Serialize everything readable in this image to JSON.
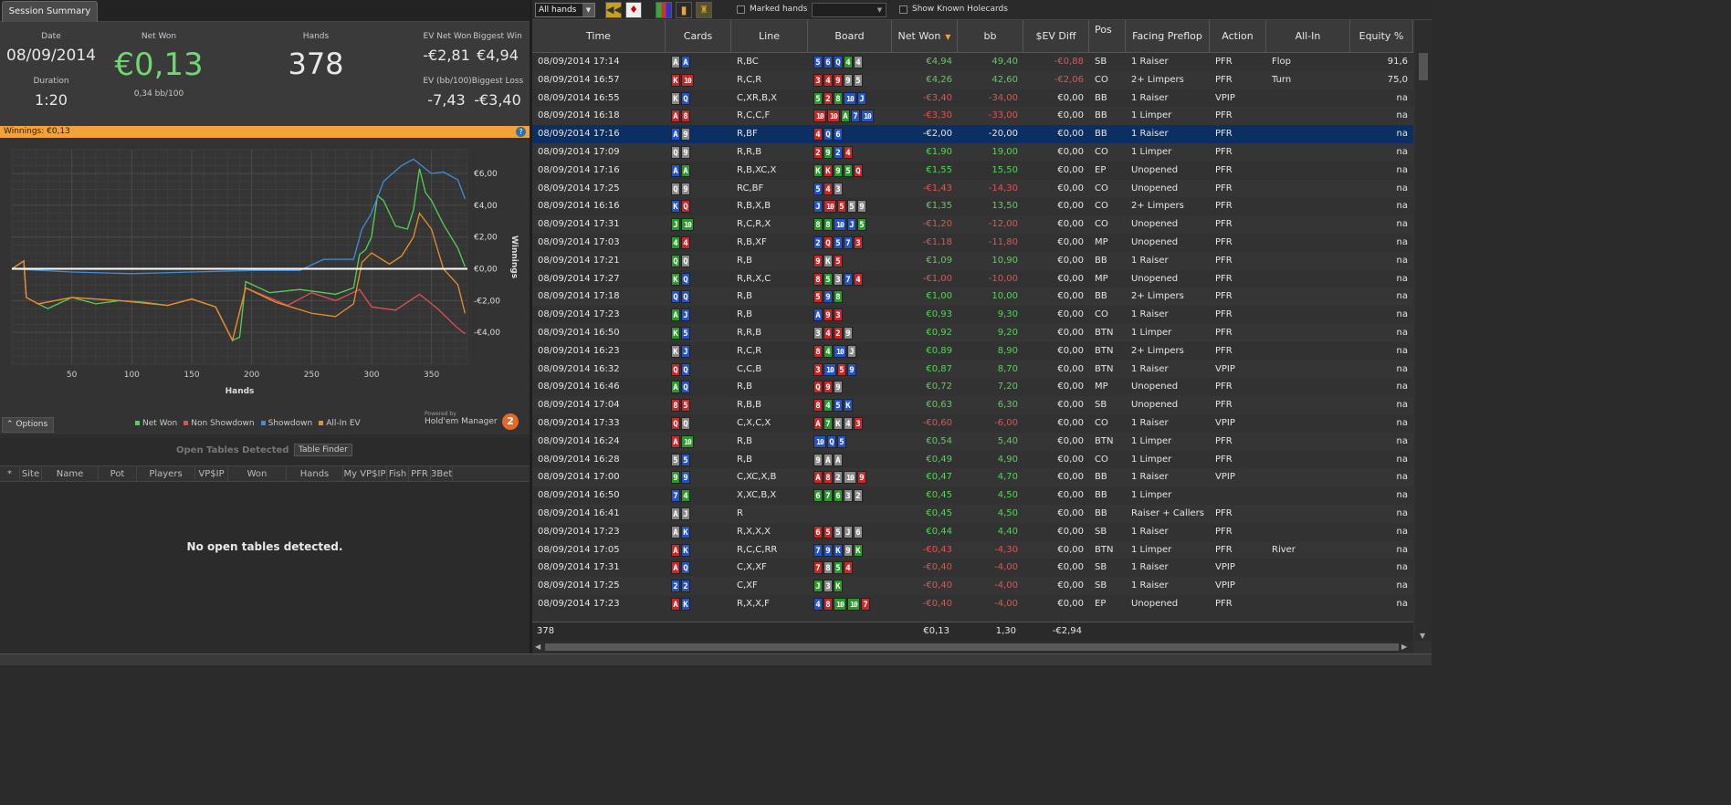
{
  "left": {
    "tab_label": "Session Summary",
    "summary": {
      "date_label": "Date",
      "date_value": "08/09/2014",
      "duration_label": "Duration",
      "duration_value": "1:20",
      "net_won_label": "Net Won",
      "net_won_value": "€0,13",
      "net_won_sub": "0,34 bb/100",
      "hands_label": "Hands",
      "hands_value": "378",
      "ev_net_won_label": "EV Net Won",
      "ev_net_won_value": "-€2,81",
      "biggest_win_label": "Biggest Win",
      "biggest_win_value": "€4,94",
      "ev_bb100_label": "EV (bb/100)",
      "ev_bb100_value": "-7,43",
      "biggest_loss_label": "Biggest Loss",
      "biggest_loss_value": "-€3,40"
    },
    "winbar_label": "Winnings:  €0,13",
    "help_glyph": "?",
    "options_label": "⌃  Options",
    "powered_by": "Powered by",
    "logo_text": "Hold'em Manager",
    "logo_badge": "2",
    "open_tables": {
      "title": "Open Tables Detected",
      "finder_label": "Table Finder",
      "columns": [
        "*",
        "Site",
        "Name",
        "Pot",
        "Players",
        "VP$IP",
        "Won",
        "Hands",
        "My VP$IP",
        "Fish",
        "PFR",
        "3Bet"
      ],
      "empty_message": "No open tables detected."
    }
  },
  "chart_data": {
    "type": "line",
    "xlabel": "Hands",
    "ylabel": "Winnings",
    "xlim": [
      0,
      380
    ],
    "ylim": [
      -6,
      7.5
    ],
    "x_ticks": [
      50,
      100,
      150,
      200,
      250,
      300,
      350
    ],
    "y_ticks": [
      6,
      4,
      2,
      0,
      -2,
      -4
    ],
    "y_tick_labels": [
      "€6,00",
      "€4,00",
      "€2,00",
      "€0,00",
      "-€2,00",
      "-€4,00"
    ],
    "grid": true,
    "legend_placement": "bottom",
    "series": [
      {
        "name": "Net Won",
        "color": "#52d152",
        "points": [
          [
            0,
            0
          ],
          [
            10,
            0.5
          ],
          [
            12,
            -1.8
          ],
          [
            22,
            -2.2
          ],
          [
            30,
            -2.5
          ],
          [
            50,
            -1.8
          ],
          [
            70,
            -2.2
          ],
          [
            90,
            -2.0
          ],
          [
            110,
            -2.1
          ],
          [
            130,
            -2.3
          ],
          [
            150,
            -1.9
          ],
          [
            170,
            -2.4
          ],
          [
            184,
            -4.5
          ],
          [
            190,
            -4.3
          ],
          [
            195,
            -0.8
          ],
          [
            215,
            -1.5
          ],
          [
            240,
            -1.3
          ],
          [
            270,
            -1.6
          ],
          [
            285,
            -1.2
          ],
          [
            290,
            0.9
          ],
          [
            295,
            1.2
          ],
          [
            300,
            2.0
          ],
          [
            305,
            4.6
          ],
          [
            310,
            4.3
          ],
          [
            320,
            2.7
          ],
          [
            330,
            2.5
          ],
          [
            335,
            3.7
          ],
          [
            340,
            6.3
          ],
          [
            345,
            4.8
          ],
          [
            350,
            4.3
          ],
          [
            360,
            2.8
          ],
          [
            372,
            1.3
          ],
          [
            378,
            0.13
          ]
        ]
      },
      {
        "name": "Non Showdown",
        "color": "#e05050",
        "points": [
          [
            0,
            0
          ],
          [
            10,
            0.5
          ],
          [
            12,
            -1.8
          ],
          [
            22,
            -2.2
          ],
          [
            50,
            -1.8
          ],
          [
            90,
            -2.0
          ],
          [
            130,
            -2.3
          ],
          [
            150,
            -1.9
          ],
          [
            170,
            -2.4
          ],
          [
            184,
            -4.5
          ],
          [
            195,
            -1.2
          ],
          [
            230,
            -2.3
          ],
          [
            250,
            -1.5
          ],
          [
            270,
            -2.0
          ],
          [
            290,
            -1.3
          ],
          [
            300,
            -2.4
          ],
          [
            320,
            -2.6
          ],
          [
            340,
            -1.6
          ],
          [
            355,
            -2.5
          ],
          [
            370,
            -3.6
          ],
          [
            378,
            -4.1
          ]
        ]
      },
      {
        "name": "Showdown",
        "color": "#3d8fd8",
        "points": [
          [
            0,
            0
          ],
          [
            50,
            -0.2
          ],
          [
            100,
            -0.3
          ],
          [
            150,
            -0.2
          ],
          [
            200,
            -0.1
          ],
          [
            240,
            -0.1
          ],
          [
            260,
            0.6
          ],
          [
            285,
            0.6
          ],
          [
            292,
            2.5
          ],
          [
            300,
            3.5
          ],
          [
            310,
            5.5
          ],
          [
            325,
            6.5
          ],
          [
            335,
            6.9
          ],
          [
            350,
            6.0
          ],
          [
            360,
            6.1
          ],
          [
            372,
            5.6
          ],
          [
            378,
            4.4
          ]
        ]
      },
      {
        "name": "All-In EV",
        "color": "#e8902a",
        "points": [
          [
            0,
            0
          ],
          [
            10,
            0.5
          ],
          [
            12,
            -1.8
          ],
          [
            22,
            -2.2
          ],
          [
            50,
            -1.8
          ],
          [
            90,
            -2.0
          ],
          [
            130,
            -2.3
          ],
          [
            150,
            -1.9
          ],
          [
            170,
            -2.4
          ],
          [
            184,
            -4.5
          ],
          [
            195,
            -1.2
          ],
          [
            220,
            -2.1
          ],
          [
            250,
            -2.8
          ],
          [
            270,
            -3.0
          ],
          [
            285,
            -2.2
          ],
          [
            292,
            0.4
          ],
          [
            300,
            1.0
          ],
          [
            315,
            0.3
          ],
          [
            325,
            0.8
          ],
          [
            335,
            2.0
          ],
          [
            340,
            3.5
          ],
          [
            350,
            2.5
          ],
          [
            360,
            0.0
          ],
          [
            372,
            -1.0
          ],
          [
            378,
            -2.81
          ]
        ]
      }
    ]
  },
  "toolbar": {
    "hands_filter": "All hands",
    "marked_hands_label": "Marked hands",
    "show_known_label": "Show Known Holecards"
  },
  "grid": {
    "columns": [
      "Time",
      "Cards",
      "Line",
      "Board",
      "Net Won",
      "bb",
      "$EV Diff",
      "Pos",
      "Facing Preflop",
      "Action",
      "All-In",
      "Equity %"
    ],
    "rows": [
      {
        "time": "08/09/2014 17:14",
        "cards": "As Ad",
        "line": "R,BC",
        "board": "5d 6d Qd 4c 4s",
        "net": "€4,94",
        "bb": "49,40",
        "ev": "-€0,88",
        "pos": "SB",
        "facing": "1 Raiser",
        "action": "PFR",
        "allin": "Flop",
        "eq": "91,6"
      },
      {
        "time": "08/09/2014 16:57",
        "cards": "Kh 10h",
        "line": "R,C,R",
        "board": "3h 4h 9h 9s 5s",
        "net": "€4,26",
        "bb": "42,60",
        "ev": "-€2,06",
        "pos": "CO",
        "facing": "2+ Limpers",
        "action": "PFR",
        "allin": "Turn",
        "eq": "75,0"
      },
      {
        "time": "08/09/2014 16:55",
        "cards": "Ks Qd",
        "line": "C,XR,B,X",
        "board": "5c 2h 8c 10d Jd",
        "net": "-€3,40",
        "bb": "-34,00",
        "ev": "€0,00",
        "pos": "BB",
        "facing": "1 Raiser",
        "action": "VPIP",
        "allin": "",
        "eq": "na"
      },
      {
        "time": "08/09/2014 16:18",
        "cards": "Ah 8h",
        "line": "R,C,C,F",
        "board": "10h 10h Ac 7d 10d",
        "net": "-€3,30",
        "bb": "-33,00",
        "ev": "€0,00",
        "pos": "BB",
        "facing": "1 Limper",
        "action": "PFR",
        "allin": "",
        "eq": "na"
      },
      {
        "time": "08/09/2014 17:16",
        "cards": "Ad 9s",
        "line": "R,BF",
        "board": "4h Qd 6d",
        "net": "-€2,00",
        "bb": "-20,00",
        "ev": "€0,00",
        "pos": "BB",
        "facing": "1 Raiser",
        "action": "PFR",
        "allin": "",
        "eq": "na",
        "selected": true
      },
      {
        "time": "08/09/2014 17:09",
        "cards": "Qs 9s",
        "line": "R,R,B",
        "board": "2h 9c 2d 4h",
        "net": "€1,90",
        "bb": "19,00",
        "ev": "€0,00",
        "pos": "CO",
        "facing": "1 Limper",
        "action": "PFR",
        "allin": "",
        "eq": "na"
      },
      {
        "time": "08/09/2014 17:16",
        "cards": "Ad Ac",
        "line": "R,B,XC,X",
        "board": "Kc Kh 9c 5c Qh",
        "net": "€1,55",
        "bb": "15,50",
        "ev": "€0,00",
        "pos": "EP",
        "facing": "Unopened",
        "action": "PFR",
        "allin": "",
        "eq": "na"
      },
      {
        "time": "08/09/2014 17:25",
        "cards": "Qs 9s",
        "line": "RC,BF",
        "board": "5d 4h 3s",
        "net": "-€1,43",
        "bb": "-14,30",
        "ev": "€0,00",
        "pos": "CO",
        "facing": "Unopened",
        "action": "PFR",
        "allin": "",
        "eq": "na"
      },
      {
        "time": "08/09/2014 16:16",
        "cards": "Kd Qh",
        "line": "R,B,X,B",
        "board": "Jd 10h 5h 5s 9s",
        "net": "€1,35",
        "bb": "13,50",
        "ev": "€0,00",
        "pos": "CO",
        "facing": "2+ Limpers",
        "action": "PFR",
        "allin": "",
        "eq": "na"
      },
      {
        "time": "08/09/2014 17:31",
        "cards": "Jc 10c",
        "line": "R,C,R,X",
        "board": "8c 8c 10d Jd 5c",
        "net": "-€1,20",
        "bb": "-12,00",
        "ev": "€0,00",
        "pos": "CO",
        "facing": "Unopened",
        "action": "PFR",
        "allin": "",
        "eq": "na"
      },
      {
        "time": "08/09/2014 17:03",
        "cards": "4c 4h",
        "line": "R,B,XF",
        "board": "2d Qh 5d 7d 3h",
        "net": "-€1,18",
        "bb": "-11,80",
        "ev": "€0,00",
        "pos": "MP",
        "facing": "Unopened",
        "action": "PFR",
        "allin": "",
        "eq": "na"
      },
      {
        "time": "08/09/2014 17:21",
        "cards": "Qc Qs",
        "line": "R,B",
        "board": "9h Ks 5h",
        "net": "€1,09",
        "bb": "10,90",
        "ev": "€0,00",
        "pos": "BB",
        "facing": "1 Raiser",
        "action": "PFR",
        "allin": "",
        "eq": "na"
      },
      {
        "time": "08/09/2014 17:27",
        "cards": "Kc Qd",
        "line": "R,R,X,C",
        "board": "8h 5c 3s 7d 4h",
        "net": "-€1,00",
        "bb": "-10,00",
        "ev": "€0,00",
        "pos": "MP",
        "facing": "Unopened",
        "action": "PFR",
        "allin": "",
        "eq": "na"
      },
      {
        "time": "08/09/2014 17:18",
        "cards": "Qd Qd",
        "line": "R,B",
        "board": "5h 9d 8c",
        "net": "€1,00",
        "bb": "10,00",
        "ev": "€0,00",
        "pos": "BB",
        "facing": "2+ Limpers",
        "action": "PFR",
        "allin": "",
        "eq": "na"
      },
      {
        "time": "08/09/2014 17:23",
        "cards": "Ac Jd",
        "line": "R,B",
        "board": "Ad 9h 3h",
        "net": "€0,93",
        "bb": "9,30",
        "ev": "€0,00",
        "pos": "CO",
        "facing": "1 Raiser",
        "action": "PFR",
        "allin": "",
        "eq": "na"
      },
      {
        "time": "08/09/2014 16:50",
        "cards": "Kc 5d",
        "line": "R,R,B",
        "board": "3s 4h 2h 9s",
        "net": "€0,92",
        "bb": "9,20",
        "ev": "€0,00",
        "pos": "BTN",
        "facing": "1 Limper",
        "action": "PFR",
        "allin": "",
        "eq": "na"
      },
      {
        "time": "08/09/2014 16:23",
        "cards": "Ks Jd",
        "line": "R,C,R",
        "board": "8h 4c 10d Js",
        "net": "€0,89",
        "bb": "8,90",
        "ev": "€0,00",
        "pos": "BTN",
        "facing": "2+ Limpers",
        "action": "PFR",
        "allin": "",
        "eq": "na"
      },
      {
        "time": "08/09/2014 16:32",
        "cards": "Qh Qd",
        "line": "C,C,B",
        "board": "3h 10d 5h 9d",
        "net": "€0,87",
        "bb": "8,70",
        "ev": "€0,00",
        "pos": "BTN",
        "facing": "1 Raiser",
        "action": "VPIP",
        "allin": "",
        "eq": "na"
      },
      {
        "time": "08/09/2014 16:46",
        "cards": "Ac Qd",
        "line": "R,B",
        "board": "Qh 9h 9s",
        "net": "€0,72",
        "bb": "7,20",
        "ev": "€0,00",
        "pos": "MP",
        "facing": "Unopened",
        "action": "PFR",
        "allin": "",
        "eq": "na"
      },
      {
        "time": "08/09/2014 17:04",
        "cards": "8h 5h",
        "line": "R,B,B",
        "board": "8h 4c 5d Kd",
        "net": "€0,63",
        "bb": "6,30",
        "ev": "€0,00",
        "pos": "SB",
        "facing": "Unopened",
        "action": "PFR",
        "allin": "",
        "eq": "na"
      },
      {
        "time": "08/09/2014 17:33",
        "cards": "Qh Qs",
        "line": "C,X,C,X",
        "board": "Ah 7c Ks 4s 3h",
        "net": "-€0,60",
        "bb": "-6,00",
        "ev": "€0,00",
        "pos": "CO",
        "facing": "1 Raiser",
        "action": "VPIP",
        "allin": "",
        "eq": "na"
      },
      {
        "time": "08/09/2014 16:24",
        "cards": "Ah 10c",
        "line": "R,B",
        "board": "10d Qd 5d",
        "net": "€0,54",
        "bb": "5,40",
        "ev": "€0,00",
        "pos": "BTN",
        "facing": "1 Limper",
        "action": "PFR",
        "allin": "",
        "eq": "na"
      },
      {
        "time": "08/09/2014 16:28",
        "cards": "5s 5d",
        "line": "R,B",
        "board": "9s As As",
        "net": "€0,49",
        "bb": "4,90",
        "ev": "€0,00",
        "pos": "CO",
        "facing": "1 Limper",
        "action": "PFR",
        "allin": "",
        "eq": "na"
      },
      {
        "time": "08/09/2014 17:00",
        "cards": "9c 9d",
        "line": "C,XC,X,B",
        "board": "Ah 8h 2s 10s 9h",
        "net": "€0,47",
        "bb": "4,70",
        "ev": "€0,00",
        "pos": "BB",
        "facing": "1 Raiser",
        "action": "VPIP",
        "allin": "",
        "eq": "na"
      },
      {
        "time": "08/09/2014 16:50",
        "cards": "7d 4c",
        "line": "X,XC,B,X",
        "board": "6c 7c 6c 3s 2s",
        "net": "€0,45",
        "bb": "4,50",
        "ev": "€0,00",
        "pos": "BB",
        "facing": "1 Limper",
        "action": "",
        "allin": "",
        "eq": "na"
      },
      {
        "time": "08/09/2014 16:41",
        "cards": "As Js",
        "line": "R",
        "board": "",
        "net": "€0,45",
        "bb": "4,50",
        "ev": "€0,00",
        "pos": "BB",
        "facing": "Raiser + Callers",
        "action": "PFR",
        "allin": "",
        "eq": "na"
      },
      {
        "time": "08/09/2014 17:23",
        "cards": "As Kd",
        "line": "R,X,X,X",
        "board": "6h 5h 5s Js 6s",
        "net": "€0,44",
        "bb": "4,40",
        "ev": "€0,00",
        "pos": "SB",
        "facing": "1 Raiser",
        "action": "PFR",
        "allin": "",
        "eq": "na"
      },
      {
        "time": "08/09/2014 17:05",
        "cards": "Ah Kd",
        "line": "R,C,C,RR",
        "board": "7d 9d Kd 9s Kc",
        "net": "-€0,43",
        "bb": "-4,30",
        "ev": "€0,00",
        "pos": "BTN",
        "facing": "1 Limper",
        "action": "PFR",
        "allin": "River",
        "eq": "na"
      },
      {
        "time": "08/09/2014 17:31",
        "cards": "Ah Qd",
        "line": "C,X,XF",
        "board": "7h 8s 5c 4h",
        "net": "-€0,40",
        "bb": "-4,00",
        "ev": "€0,00",
        "pos": "SB",
        "facing": "1 Raiser",
        "action": "VPIP",
        "allin": "",
        "eq": "na"
      },
      {
        "time": "08/09/2014 17:25",
        "cards": "2d 2d",
        "line": "C,XF",
        "board": "Jc 3s Kc",
        "net": "-€0,40",
        "bb": "-4,00",
        "ev": "€0,00",
        "pos": "SB",
        "facing": "1 Raiser",
        "action": "VPIP",
        "allin": "",
        "eq": "na"
      },
      {
        "time": "08/09/2014 17:23",
        "cards": "Ah Kd",
        "line": "R,X,X,F",
        "board": "4d 8h 10c 10c 7h",
        "net": "-€0,40",
        "bb": "-4,00",
        "ev": "€0,00",
        "pos": "EP",
        "facing": "Unopened",
        "action": "PFR",
        "allin": "",
        "eq": "na"
      }
    ],
    "footer": {
      "count": "378",
      "net": "€0,13",
      "bb": "1,30",
      "ev": "-€2,94"
    }
  }
}
